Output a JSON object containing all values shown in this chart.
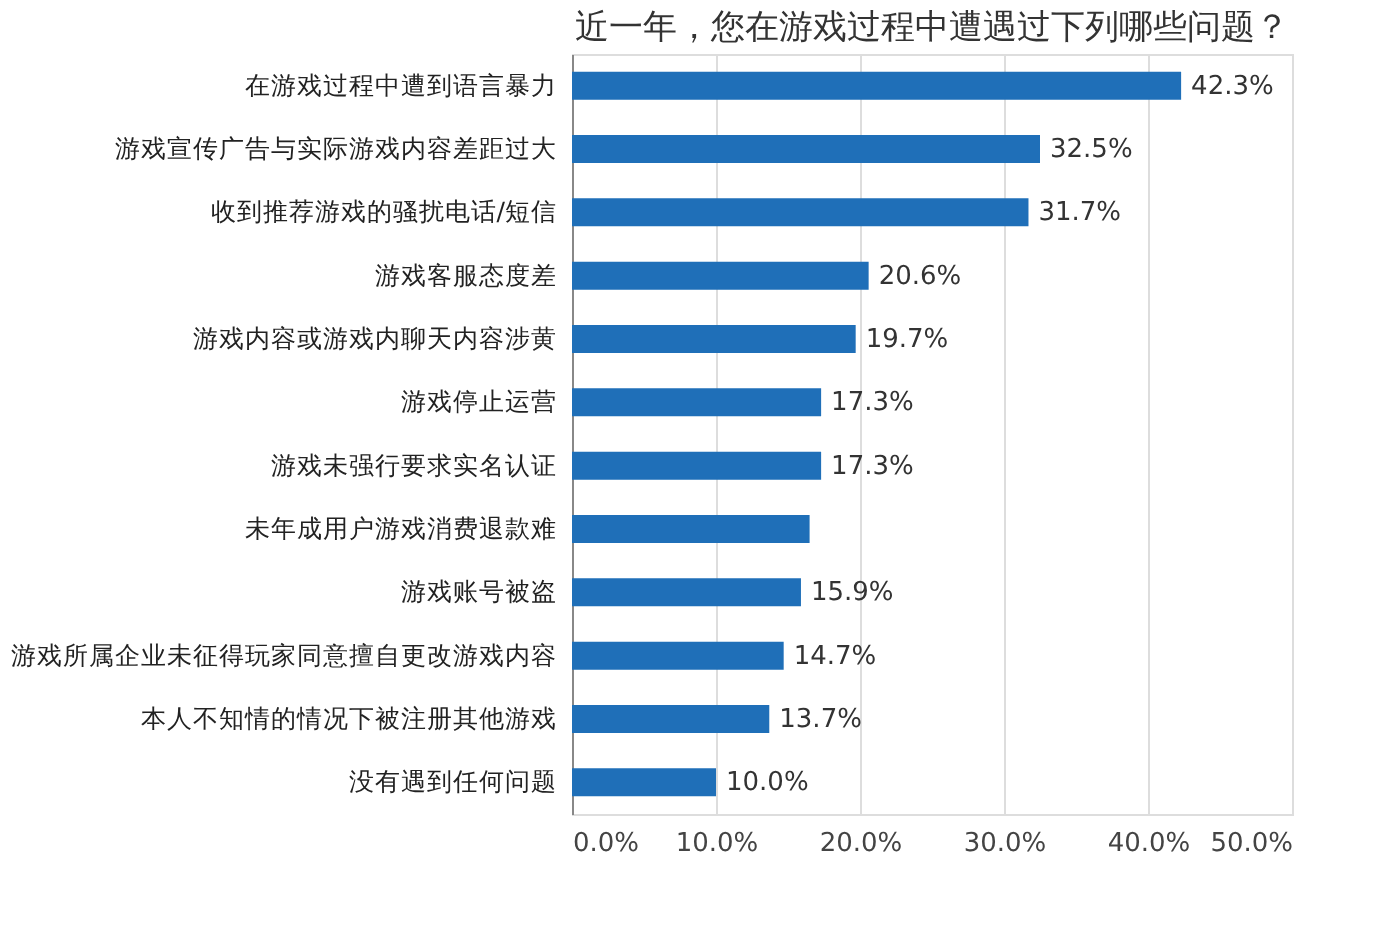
{
  "chart_data": {
    "type": "bar",
    "orientation": "horizontal",
    "title": "近一年，您在游戏过程中遭遇过下列哪些问题？",
    "categories": [
      "在游戏过程中遭到语言暴力",
      "游戏宣传广告与实际游戏内容差距过大",
      "收到推荐游戏的骚扰电话/短信",
      "游戏客服态度差",
      "游戏内容或游戏内聊天内容涉黄",
      "游戏停止运营",
      "游戏未强行要求实名认证",
      "未年成用户游戏消费退款难",
      "游戏账号被盗",
      "游戏所属企业未征得玩家同意擅自更改游戏内容",
      "本人不知情的情况下被注册其他游戏",
      "没有遇到任何问题"
    ],
    "values": [
      42.3,
      32.5,
      31.7,
      20.6,
      19.7,
      17.3,
      17.3,
      16.5,
      15.9,
      14.7,
      13.7,
      10.0
    ],
    "value_labels": [
      "42.3%",
      "32.5%",
      "31.7%",
      "20.6%",
      "19.7%",
      "17.3%",
      "17.3%",
      null,
      "15.9%",
      "14.7%",
      "13.7%",
      "10.0%"
    ],
    "color": "#1f6fb8",
    "xlim": [
      0,
      50
    ],
    "xticks": [
      {
        "value": 0,
        "label": "0.0%"
      },
      {
        "value": 10,
        "label": "10.0%"
      },
      {
        "value": 20,
        "label": "20.0%"
      },
      {
        "value": 30,
        "label": "30.0%"
      },
      {
        "value": 40,
        "label": "40.0%"
      },
      {
        "value": 50,
        "label": "50.0%"
      }
    ],
    "grid": "x"
  }
}
